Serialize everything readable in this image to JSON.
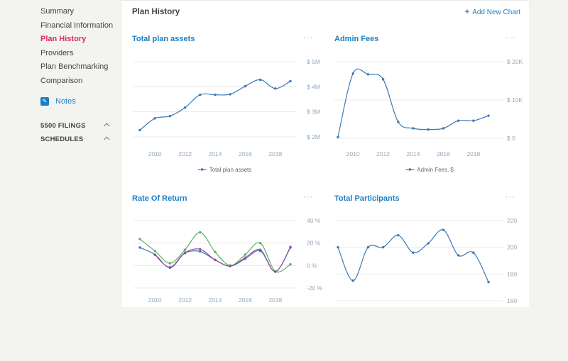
{
  "sidebar": {
    "items": [
      {
        "label": "Summary",
        "active": false
      },
      {
        "label": "Financial Information",
        "active": false
      },
      {
        "label": "Plan History",
        "active": true
      },
      {
        "label": "Providers",
        "active": false
      },
      {
        "label": "Plan Benchmarking",
        "active": false
      },
      {
        "label": "Comparison",
        "active": false
      }
    ],
    "notes_label": "Notes",
    "sections": [
      {
        "label": "5500 FILINGS"
      },
      {
        "label": "SCHEDULES"
      }
    ]
  },
  "header": {
    "title": "Plan History",
    "add_chart_label": "Add New Chart"
  },
  "icons": {
    "chart_menu": "···",
    "add_new": "+",
    "notes_pencil": "✎"
  },
  "colors": {
    "accent_blue": "#1a7ec5",
    "active_pink": "#dd2a6c",
    "line_blue": "#3d77b6",
    "line_green": "#5bb25c",
    "line_purple": "#9b4f9b",
    "gridline": "#e9e9e9",
    "axis_label": "#93a9bc",
    "legend_text": "#5c6b78",
    "sidebar_bg": "#f3f3ef",
    "panel_bg": "#ffffff"
  },
  "chart_data": [
    {
      "type": "line",
      "title": "Total plan assets",
      "x": [
        2009,
        2010,
        2011,
        2012,
        2013,
        2014,
        2015,
        2016,
        2017,
        2018,
        2019
      ],
      "x_ticks": [
        2010,
        2012,
        2014,
        2016,
        2018
      ],
      "ylim": [
        2000000,
        5000000
      ],
      "y_ticks": [
        {
          "value": 5000000,
          "label": "$ 5M"
        },
        {
          "value": 4000000,
          "label": "$ 4M"
        },
        {
          "value": 3000000,
          "label": "$ 3M"
        },
        {
          "value": 2000000,
          "label": "$ 2M"
        }
      ],
      "series": [
        {
          "name": "Total plan assets",
          "color": "#3d77b6",
          "values": [
            2270000,
            2740000,
            2830000,
            3170000,
            3680000,
            3680000,
            3700000,
            4020000,
            4280000,
            3930000,
            4220000
          ]
        }
      ],
      "legend": [
        {
          "label": "Total plan assets",
          "color": "#3d77b6"
        }
      ]
    },
    {
      "type": "line",
      "title": "Admin Fees",
      "x": [
        2009,
        2010,
        2011,
        2012,
        2013,
        2014,
        2015,
        2016,
        2017,
        2018,
        2019
      ],
      "x_ticks": [
        2010,
        2012,
        2014,
        2016,
        2018
      ],
      "ylim": [
        0,
        20000
      ],
      "y_ticks": [
        {
          "value": 20000,
          "label": "$ 20K"
        },
        {
          "value": 10000,
          "label": "$ 10K"
        },
        {
          "value": 0,
          "label": "$ 0"
        }
      ],
      "series": [
        {
          "name": "Admin Fees, $",
          "color": "#3d77b6",
          "values": [
            300,
            16900,
            16700,
            15400,
            4300,
            2600,
            2300,
            2600,
            4600,
            4600,
            5900
          ]
        }
      ],
      "legend": [
        {
          "label": "Admin Fees, $",
          "color": "#3d77b6"
        }
      ]
    },
    {
      "type": "line",
      "title": "Rate Of Return",
      "x": [
        2009,
        2010,
        2011,
        2012,
        2013,
        2014,
        2015,
        2016,
        2017,
        2018,
        2019
      ],
      "x_ticks": [
        2010,
        2012,
        2014,
        2016,
        2018
      ],
      "ylim": [
        -20,
        40
      ],
      "y_ticks": [
        {
          "value": 40,
          "label": "40 %"
        },
        {
          "value": 20,
          "label": "20 %"
        },
        {
          "value": 0,
          "label": "0 %"
        },
        {
          "value": -20,
          "label": "-20 %"
        }
      ],
      "series": [
        {
          "name": "series-blue",
          "color": "#3d77b6",
          "values": [
            16,
            9.7,
            -2,
            11,
            12.5,
            5,
            -0.5,
            6,
            13,
            -5.5,
            16
          ]
        },
        {
          "name": "series-green",
          "color": "#5bb25c",
          "values": [
            23.6,
            13,
            2,
            14,
            29.5,
            12,
            0,
            9.7,
            20,
            -5.2,
            1
          ]
        },
        {
          "name": "series-purple",
          "color": "#9b4f9b",
          "values": [
            null,
            9.5,
            -1.5,
            11.5,
            14.5,
            5,
            -0.5,
            7,
            14,
            -5.5,
            16.5
          ]
        }
      ]
    },
    {
      "type": "line",
      "title": "Total Participants",
      "x": [
        2009,
        2010,
        2011,
        2012,
        2013,
        2014,
        2015,
        2016,
        2017,
        2018,
        2019
      ],
      "x_ticks": [],
      "ylim": [
        160,
        220
      ],
      "y_ticks": [
        {
          "value": 220,
          "label": "220"
        },
        {
          "value": 200,
          "label": "200"
        },
        {
          "value": 180,
          "label": "180"
        },
        {
          "value": 160,
          "label": "160"
        }
      ],
      "series": [
        {
          "name": "Total Participants",
          "color": "#3d77b6",
          "values": [
            200,
            175,
            200,
            200,
            209,
            196,
            203,
            213,
            194,
            196,
            174
          ]
        }
      ]
    }
  ]
}
